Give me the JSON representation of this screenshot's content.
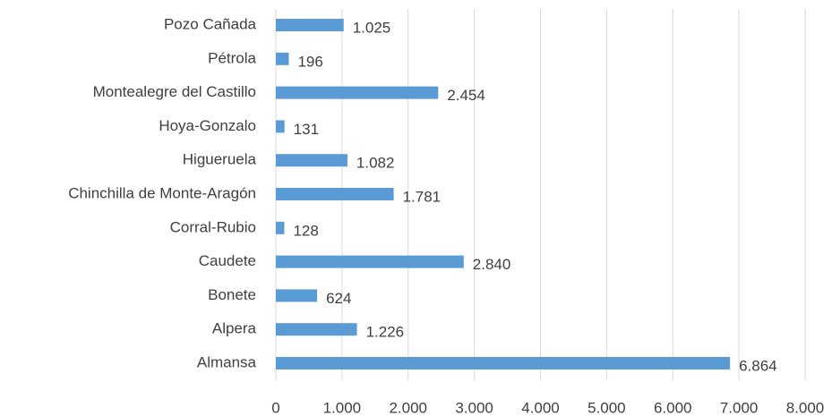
{
  "chart_data": {
    "type": "hbar",
    "categories": [
      "Pozo Cañada",
      "Pétrola",
      "Montealegre del Castillo",
      "Hoya-Gonzalo",
      "Higueruela",
      "Chinchilla de Monte-Aragón",
      "Corral-Rubio",
      "Caudete",
      "Bonete",
      "Alpera",
      "Almansa"
    ],
    "values": [
      1025,
      196,
      2454,
      131,
      1082,
      1781,
      128,
      2840,
      624,
      1226,
      6864
    ],
    "value_labels": [
      "1.025",
      "196",
      "2.454",
      "131",
      "1.082",
      "1.781",
      "128",
      "2.840",
      "624",
      "1.226",
      "6.864"
    ],
    "color": "#5b9bd5",
    "xlim": [
      0,
      8000
    ],
    "xticks": [
      0,
      {
        "value": 1000,
        "label": "1.000"
      },
      {
        "value": 2000,
        "label": "2.000"
      },
      {
        "value": 3000,
        "label": "3.000"
      },
      {
        "value": 4000,
        "label": "4.000"
      },
      {
        "value": 5000,
        "label": "5.000"
      },
      {
        "value": 6000,
        "label": "6.000"
      },
      {
        "value": 7000,
        "label": "7.000"
      },
      {
        "value": 8000,
        "label": "8.000"
      }
    ],
    "grid": true
  }
}
